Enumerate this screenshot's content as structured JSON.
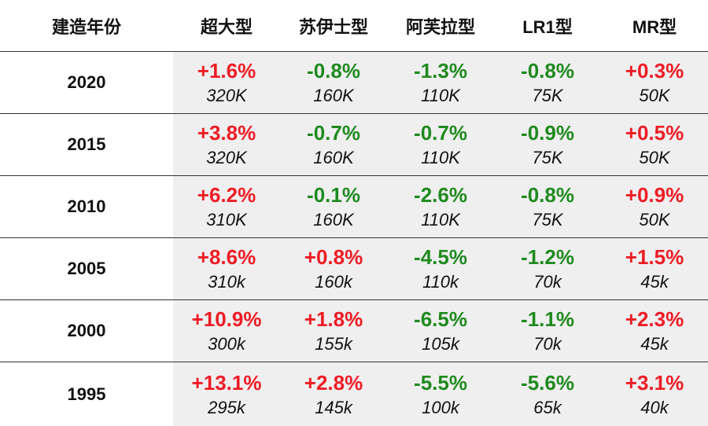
{
  "header": {
    "year_col": "建造年份",
    "cols": [
      "超大型",
      "苏伊士型",
      "阿芙拉型",
      "LR1型",
      "MR型"
    ]
  },
  "rows": [
    {
      "year": "2020",
      "cells": [
        {
          "change": "+1.6%",
          "dir": "up",
          "price": "320K"
        },
        {
          "change": "-0.8%",
          "dir": "down",
          "price": "160K"
        },
        {
          "change": "-1.3%",
          "dir": "down",
          "price": "110K"
        },
        {
          "change": "-0.8%",
          "dir": "down",
          "price": "75K"
        },
        {
          "change": "+0.3%",
          "dir": "up",
          "price": "50K"
        }
      ]
    },
    {
      "year": "2015",
      "cells": [
        {
          "change": "+3.8%",
          "dir": "up",
          "price": "320K"
        },
        {
          "change": "-0.7%",
          "dir": "down",
          "price": "160K"
        },
        {
          "change": "-0.7%",
          "dir": "down",
          "price": "110K"
        },
        {
          "change": "-0.9%",
          "dir": "down",
          "price": "75K"
        },
        {
          "change": "+0.5%",
          "dir": "up",
          "price": "50K"
        }
      ]
    },
    {
      "year": "2010",
      "cells": [
        {
          "change": "+6.2%",
          "dir": "up",
          "price": "310K"
        },
        {
          "change": "-0.1%",
          "dir": "down",
          "price": "160K"
        },
        {
          "change": "-2.6%",
          "dir": "down",
          "price": "110K"
        },
        {
          "change": "-0.8%",
          "dir": "down",
          "price": "75K"
        },
        {
          "change": "+0.9%",
          "dir": "up",
          "price": "50K"
        }
      ]
    },
    {
      "year": "2005",
      "cells": [
        {
          "change": "+8.6%",
          "dir": "up",
          "price": "310k"
        },
        {
          "change": "+0.8%",
          "dir": "up",
          "price": "160k"
        },
        {
          "change": "-4.5%",
          "dir": "down",
          "price": "110k"
        },
        {
          "change": "-1.2%",
          "dir": "down",
          "price": "70k"
        },
        {
          "change": "+1.5%",
          "dir": "up",
          "price": "45k"
        }
      ]
    },
    {
      "year": "2000",
      "cells": [
        {
          "change": "+10.9%",
          "dir": "up",
          "price": "300k"
        },
        {
          "change": "+1.8%",
          "dir": "up",
          "price": "155k"
        },
        {
          "change": "-6.5%",
          "dir": "down",
          "price": "105k"
        },
        {
          "change": "-1.1%",
          "dir": "down",
          "price": "70k"
        },
        {
          "change": "+2.3%",
          "dir": "up",
          "price": "45k"
        }
      ]
    },
    {
      "year": "1995",
      "cells": [
        {
          "change": "+13.1%",
          "dir": "up",
          "price": "295k"
        },
        {
          "change": "+2.8%",
          "dir": "up",
          "price": "145k"
        },
        {
          "change": "-5.5%",
          "dir": "down",
          "price": "100k"
        },
        {
          "change": "-5.6%",
          "dir": "down",
          "price": "65k"
        },
        {
          "change": "+3.1%",
          "dir": "up",
          "price": "40k"
        }
      ]
    }
  ],
  "colors": {
    "up": "#ee1c25",
    "down": "#1f8a1f",
    "cell_bg": "#efefef"
  }
}
